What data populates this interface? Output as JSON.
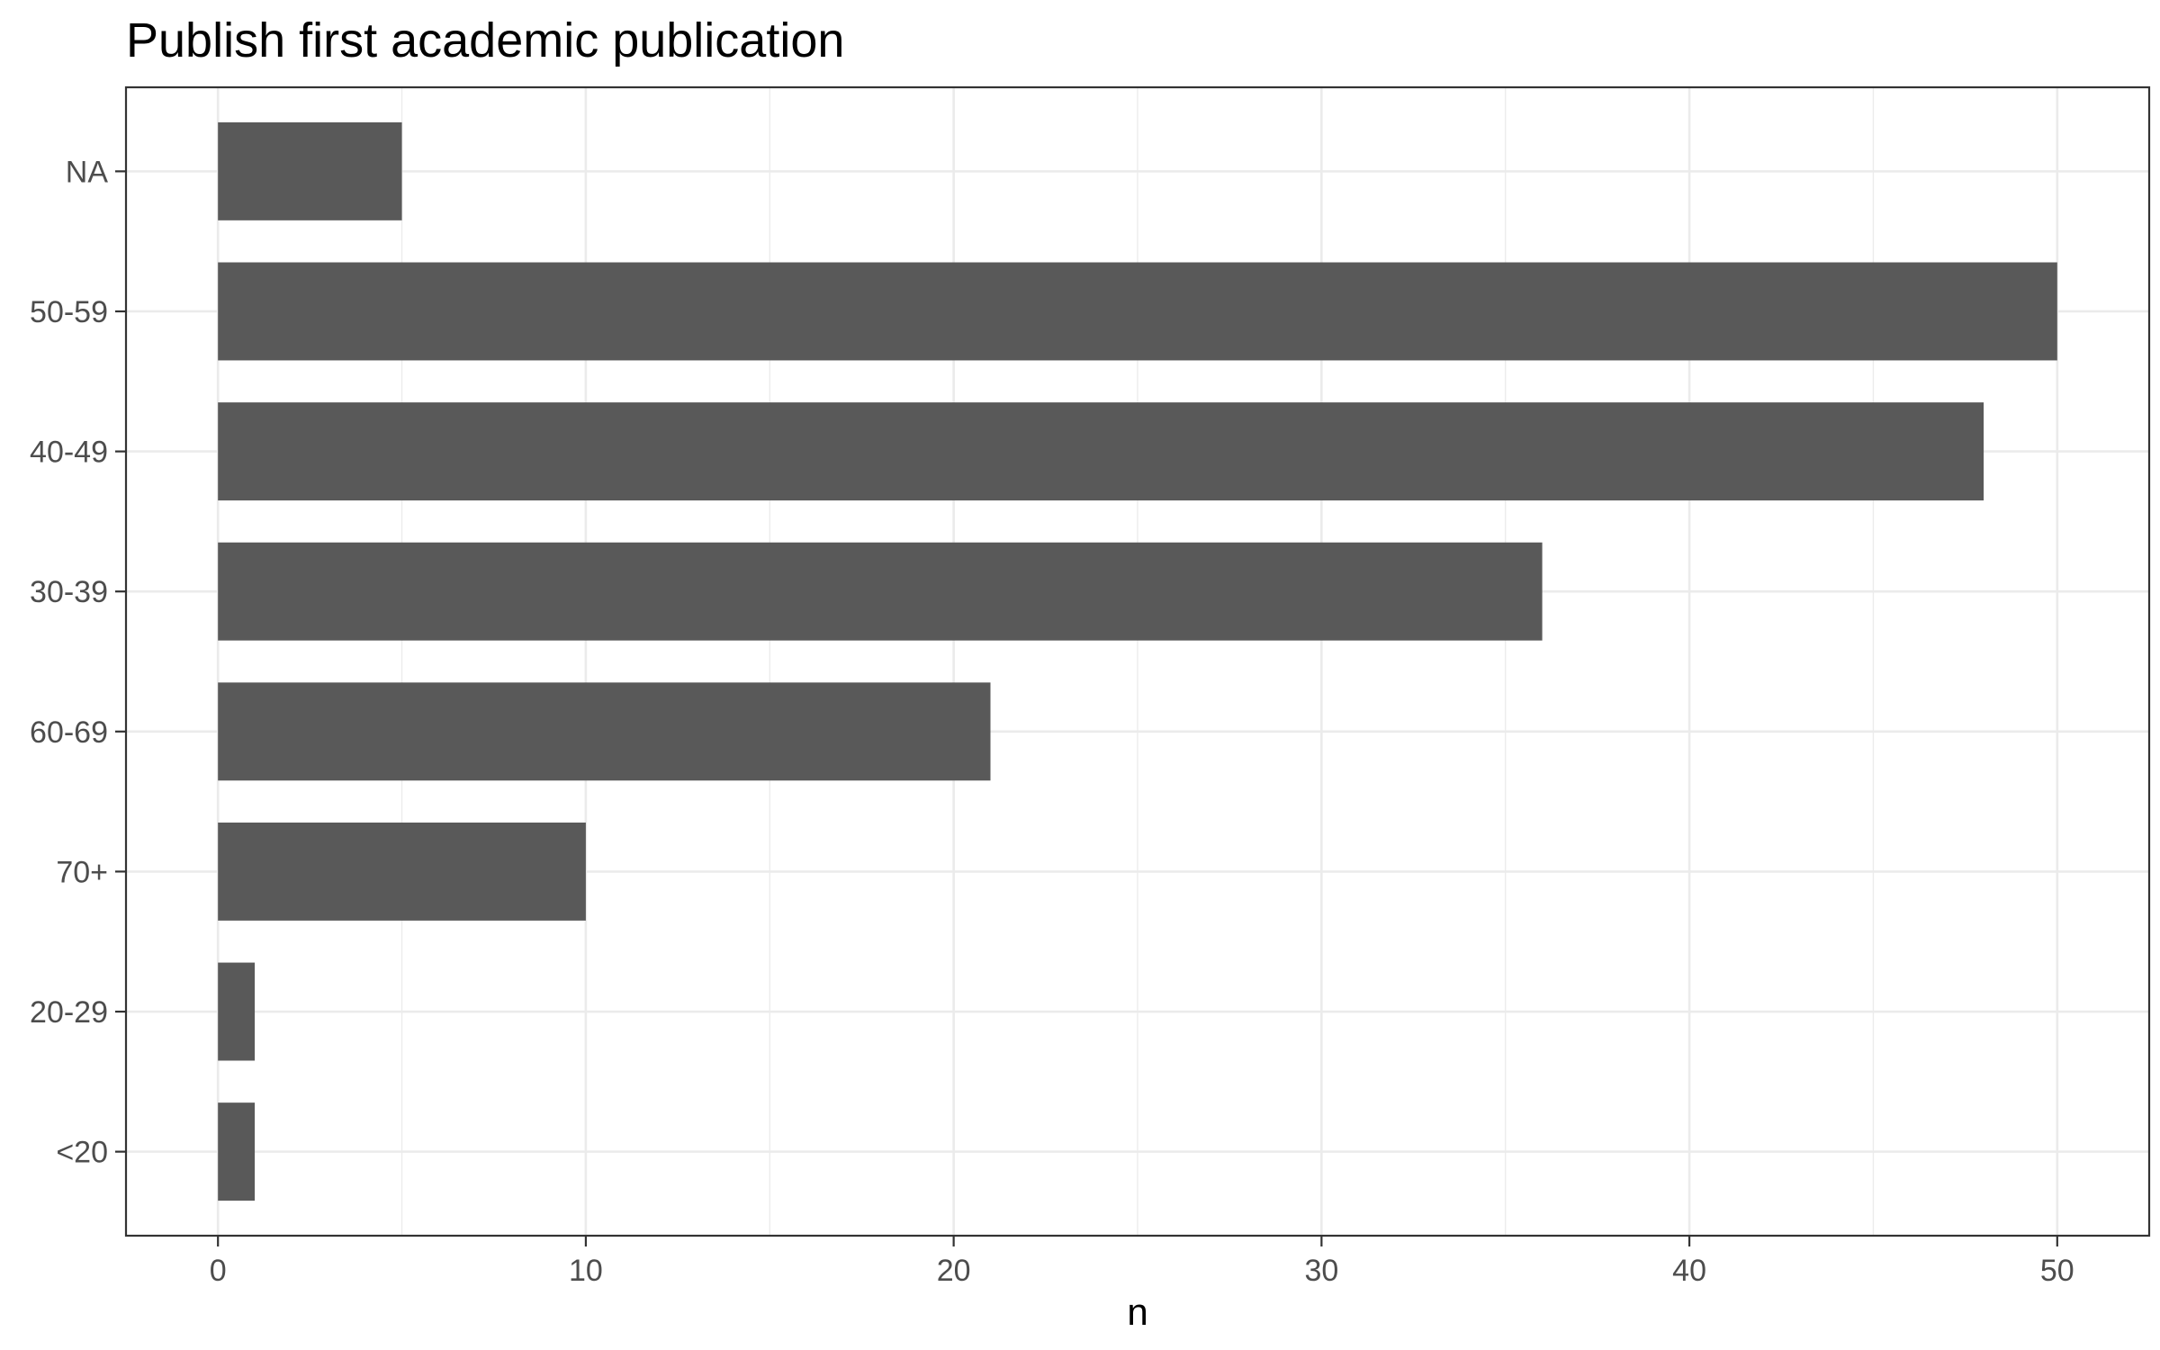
{
  "chart_data": {
    "type": "bar",
    "orientation": "horizontal",
    "title": "Publish first academic publication",
    "xlabel": "n",
    "ylabel": "",
    "categories": [
      "NA",
      "50-59",
      "40-49",
      "30-39",
      "60-69",
      "70+",
      "20-29",
      "<20"
    ],
    "values": [
      5,
      50,
      48,
      36,
      21,
      10,
      1,
      1
    ],
    "xlim": [
      -2.5,
      52.5
    ],
    "xticks": [
      0,
      10,
      20,
      30,
      40,
      50
    ],
    "grid": true,
    "legend": "none",
    "colors": {
      "bar": "#595959",
      "grid": "#ebebeb",
      "panel_border": "#333333",
      "tick_label": "#4d4d4d",
      "background": "#ffffff"
    }
  }
}
